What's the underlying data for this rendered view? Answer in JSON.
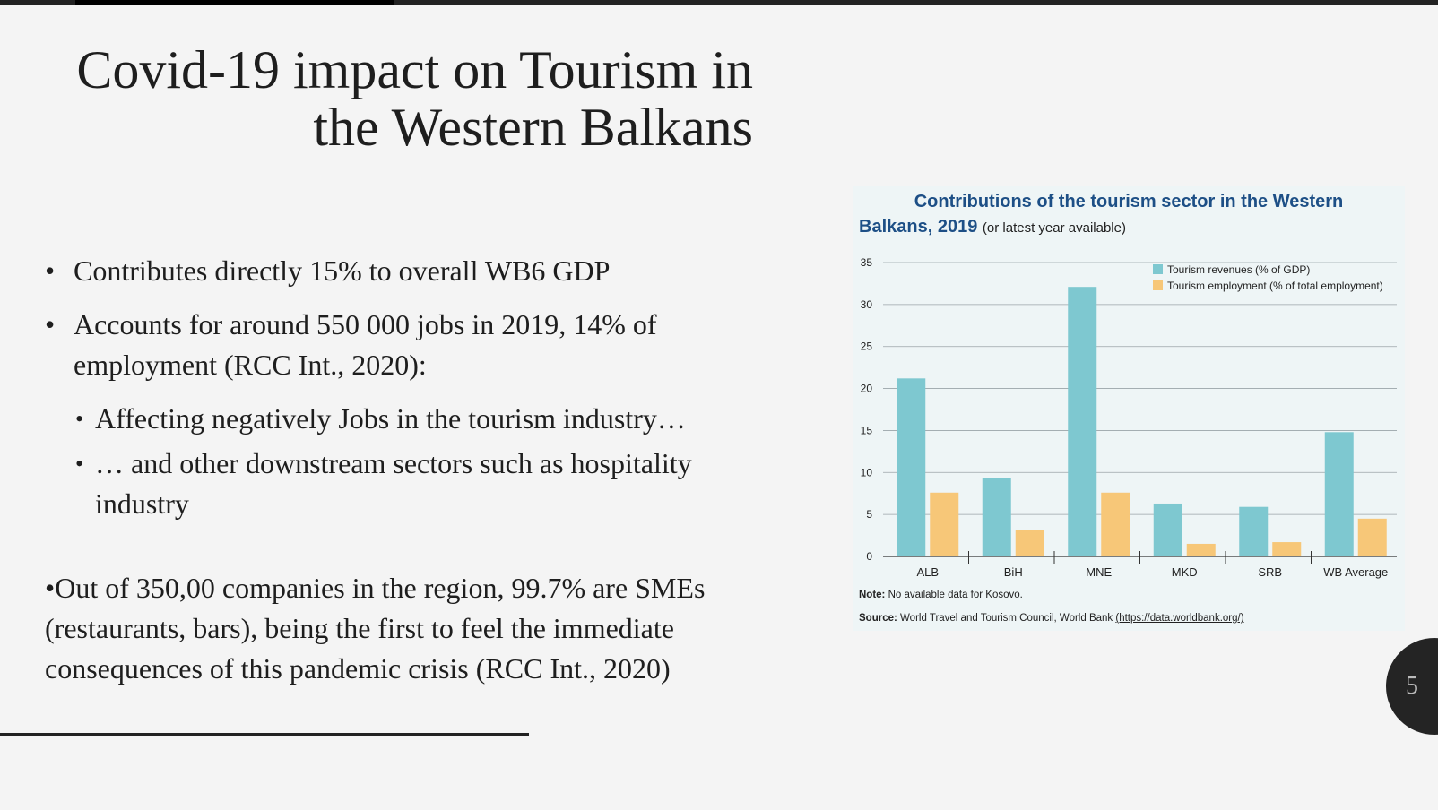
{
  "slide": {
    "title_line1": "Covid-19 impact on Tourism in",
    "title_line2": "the Western Balkans",
    "bullets": [
      "Contributes directly 15% to overall  WB6 GDP",
      "Accounts for around 550 000 jobs in 2019, 14% of employment (RCC Int., 2020):"
    ],
    "sub_bullets": [
      "Affecting negatively Jobs in the tourism industry…",
      "… and other downstream sectors such as hospitality industry"
    ],
    "paragraph": "•Out of 350,00  companies in the region, 99.7% are SMEs (restaurants, bars), being  the first to feel the immediate consequences of this pandemic crisis (RCC Int., 2020)",
    "page_number": "5"
  },
  "chart_data": {
    "type": "bar",
    "title": "Contributions of the tourism sector in the Western Balkans, 2019",
    "title_line1": "Contributions of the tourism sector in the Western",
    "title_line2": "Balkans, 2019",
    "subtitle": "(or latest year available)",
    "categories": [
      "ALB",
      "BiH",
      "MNE",
      "MKD",
      "SRB",
      "WB Average"
    ],
    "series": [
      {
        "name": "Tourism revenues (% of GDP)",
        "values": [
          21.2,
          9.3,
          32.1,
          6.3,
          5.9,
          14.8
        ],
        "color": "#7ec8d0"
      },
      {
        "name": "Tourism employment (% of total employment)",
        "values": [
          7.6,
          3.2,
          7.6,
          1.5,
          1.7,
          4.5
        ],
        "color": "#f7c778"
      }
    ],
    "ylim": [
      0,
      35
    ],
    "yticks": [
      0,
      5,
      10,
      15,
      20,
      25,
      30,
      35
    ],
    "grid": true,
    "legend": "top-right",
    "note_label": "Note:",
    "note": "No available data for Kosovo.",
    "source_label": "Source:",
    "source": "World Travel and Tourism Council, World Bank ",
    "source_link": "(https://data.worldbank.org/)"
  }
}
